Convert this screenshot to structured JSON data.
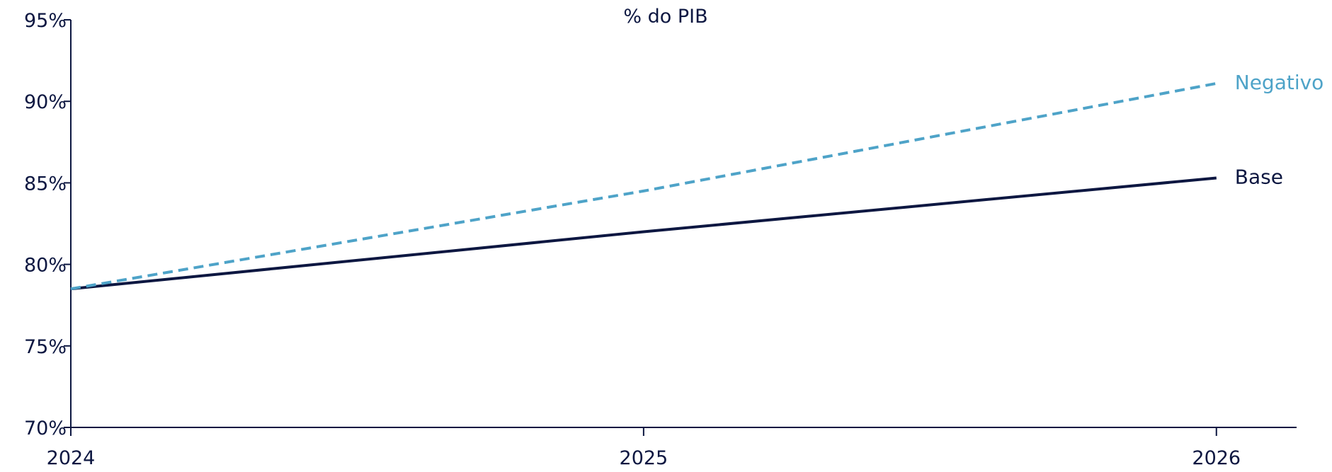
{
  "chart_data": {
    "type": "line",
    "title": "% do PIB",
    "xlabel": "",
    "ylabel": "",
    "x": [
      2024,
      2025,
      2026
    ],
    "xlim": [
      2024,
      2026.14
    ],
    "ylim": [
      70,
      95
    ],
    "y_ticks": [
      70,
      75,
      80,
      85,
      90,
      95
    ],
    "y_tick_labels": [
      "70%",
      "75%",
      "80%",
      "85%",
      "90%",
      "95%"
    ],
    "x_ticks": [
      2024,
      2025,
      2026
    ],
    "x_tick_labels": [
      "2024",
      "2025",
      "2026"
    ],
    "grid": false,
    "legend": "inline-right",
    "series": [
      {
        "name": "Base",
        "values": [
          78.5,
          82.0,
          85.3
        ],
        "color": "#0d1741",
        "style": "solid"
      },
      {
        "name": "Negativo",
        "values": [
          78.5,
          84.5,
          91.1
        ],
        "color": "#4ea3c8",
        "style": "dashed"
      }
    ]
  }
}
